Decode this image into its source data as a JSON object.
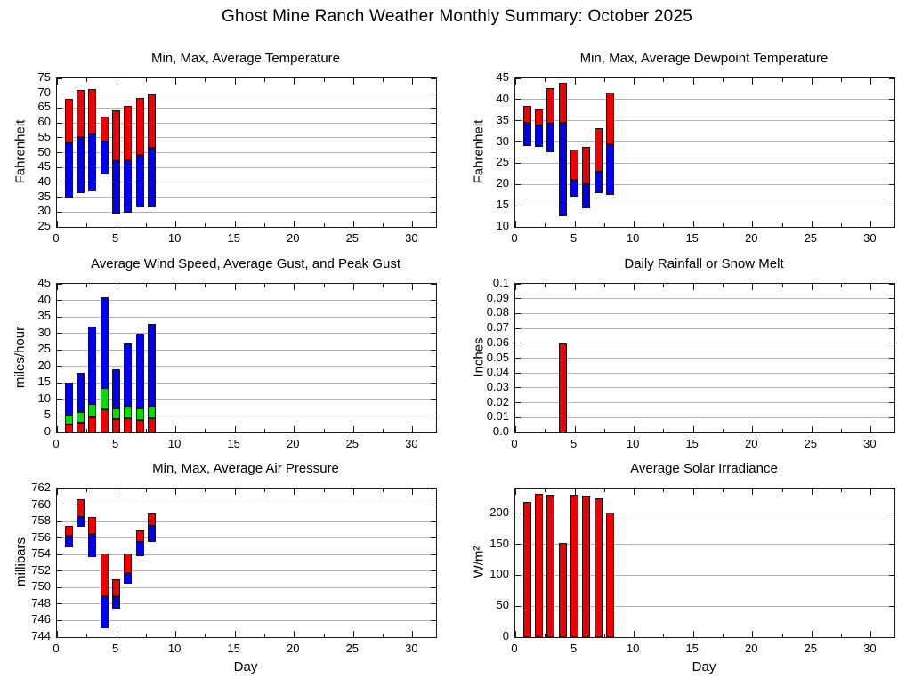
{
  "page": {
    "title": "Ghost Mine Ranch Weather Monthly Summary: October 2025",
    "background": "#ffffff",
    "grid_color": "#b4b4b4",
    "axis_color": "#1a1a1a"
  },
  "chart_data": [
    {
      "id": "temperature",
      "type": "range-bar",
      "title": "Min, Max, Average Temperature",
      "ylabel": "Fahrenheit",
      "xlabel": "",
      "ylim": [
        25,
        75
      ],
      "ytick_values": [
        25,
        30,
        35,
        40,
        45,
        50,
        55,
        60,
        65,
        70,
        75
      ],
      "ytick_labels": [
        "25",
        "30",
        "35",
        "40",
        "45",
        "50",
        "55",
        "60",
        "65",
        "70",
        "75"
      ],
      "xlim": [
        0,
        32
      ],
      "xtick_values": [
        0,
        5,
        10,
        15,
        20,
        25,
        30
      ],
      "xtick_labels": [
        "0",
        "5",
        "10",
        "15",
        "20",
        "25",
        "30"
      ],
      "x_minor_step": 2.5,
      "grid": "horizontal",
      "legend": "none",
      "segment_colors": [
        "#0000ee",
        "#ee0000"
      ],
      "x": [
        1,
        2,
        3,
        4,
        5,
        6,
        7,
        8
      ],
      "series": [
        {
          "name": "min",
          "values": [
            35.0,
            36.4,
            37.1,
            42.7,
            29.6,
            29.7,
            31.6,
            31.7
          ]
        },
        {
          "name": "average",
          "values": [
            53.0,
            55.1,
            56.1,
            53.8,
            47.1,
            47.4,
            49.2,
            51.5
          ]
        },
        {
          "name": "max",
          "values": [
            68.0,
            71.2,
            71.5,
            62.0,
            64.2,
            65.6,
            68.4,
            69.5
          ]
        }
      ]
    },
    {
      "id": "dewpoint",
      "type": "range-bar",
      "title": "Min, Max, Average Dewpoint Temperature",
      "ylabel": "Fahrenheit",
      "xlabel": "",
      "ylim": [
        10,
        45
      ],
      "ytick_values": [
        10,
        15,
        20,
        25,
        30,
        35,
        40,
        45
      ],
      "ytick_labels": [
        "10",
        "15",
        "20",
        "25",
        "30",
        "35",
        "40",
        "45"
      ],
      "xlim": [
        0,
        32
      ],
      "xtick_values": [
        0,
        5,
        10,
        15,
        20,
        25,
        30
      ],
      "xtick_labels": [
        "0",
        "5",
        "10",
        "15",
        "20",
        "25",
        "30"
      ],
      "x_minor_step": 2.5,
      "grid": "horizontal",
      "legend": "none",
      "segment_colors": [
        "#0000ee",
        "#ee0000"
      ],
      "x": [
        1,
        2,
        3,
        4,
        5,
        6,
        7,
        8
      ],
      "series": [
        {
          "name": "min",
          "values": [
            29.0,
            28.9,
            27.5,
            12.5,
            17.1,
            14.3,
            17.9,
            17.5
          ]
        },
        {
          "name": "average",
          "values": [
            34.6,
            33.9,
            34.4,
            34.6,
            21.1,
            20.1,
            22.9,
            29.5
          ]
        },
        {
          "name": "max",
          "values": [
            38.5,
            37.6,
            42.6,
            44.0,
            28.2,
            28.9,
            33.2,
            41.7
          ]
        }
      ]
    },
    {
      "id": "wind",
      "type": "stacked3-bar",
      "title": "Average Wind Speed, Average Gust, and Peak Gust",
      "ylabel": "miles/hour",
      "xlabel": "",
      "ylim": [
        0,
        45
      ],
      "ytick_values": [
        0,
        5,
        10,
        15,
        20,
        25,
        30,
        35,
        40,
        45
      ],
      "ytick_labels": [
        "0",
        "5",
        "10",
        "15",
        "20",
        "25",
        "30",
        "35",
        "40",
        "45"
      ],
      "xlim": [
        0,
        32
      ],
      "xtick_values": [
        0,
        5,
        10,
        15,
        20,
        25,
        30
      ],
      "xtick_labels": [
        "0",
        "5",
        "10",
        "15",
        "20",
        "25",
        "30"
      ],
      "x_minor_step": 2.5,
      "grid": "horizontal",
      "legend": "none",
      "segment_colors": [
        "#ee0000",
        "#00dd00",
        "#0000ee"
      ],
      "x": [
        1,
        2,
        3,
        4,
        5,
        6,
        7,
        8
      ],
      "series": [
        {
          "name": "avg-wind-speed",
          "values": [
            2.5,
            3.0,
            4.5,
            7.0,
            4.0,
            4.3,
            3.8,
            4.2
          ]
        },
        {
          "name": "avg-gust",
          "values": [
            5.0,
            6.3,
            8.7,
            13.5,
            7.3,
            8.2,
            7.2,
            8.1
          ]
        },
        {
          "name": "peak-gust",
          "values": [
            15,
            18,
            32,
            41,
            19,
            27,
            30,
            33
          ]
        }
      ]
    },
    {
      "id": "rainfall",
      "type": "bar",
      "title": "Daily Rainfall or Snow Melt",
      "ylabel": "Inches",
      "xlabel": "",
      "ylim": [
        0,
        0.1
      ],
      "ytick_values": [
        0,
        0.01,
        0.02,
        0.03,
        0.04,
        0.05,
        0.06,
        0.07,
        0.08,
        0.09,
        0.1
      ],
      "ytick_labels": [
        "0.0",
        "0.01",
        "0.02",
        "0.03",
        "0.04",
        "0.05",
        "0.06",
        "0.07",
        "0.08",
        "0.09",
        "0.1"
      ],
      "xlim": [
        0,
        32
      ],
      "xtick_values": [
        0,
        5,
        10,
        15,
        20,
        25,
        30
      ],
      "xtick_labels": [
        "0",
        "5",
        "10",
        "15",
        "20",
        "25",
        "30"
      ],
      "x_minor_step": 2.5,
      "grid": "horizontal",
      "legend": "none",
      "segment_colors": [
        "#ee0000"
      ],
      "x": [
        1,
        2,
        3,
        4,
        5,
        6,
        7,
        8
      ],
      "series": [
        {
          "name": "rainfall",
          "values": [
            0,
            0,
            0,
            0.06,
            0,
            0,
            0,
            0
          ]
        }
      ]
    },
    {
      "id": "pressure",
      "type": "range-bar",
      "title": "Min, Max, Average Air Pressure",
      "ylabel": "millibars",
      "xlabel": "Day",
      "ylim": [
        744,
        762
      ],
      "ytick_values": [
        744,
        746,
        748,
        750,
        752,
        754,
        756,
        758,
        760,
        762
      ],
      "ytick_labels": [
        "744",
        "746",
        "748",
        "750",
        "752",
        "754",
        "756",
        "758",
        "760",
        "762"
      ],
      "xlim": [
        0,
        32
      ],
      "xtick_values": [
        0,
        5,
        10,
        15,
        20,
        25,
        30
      ],
      "xtick_labels": [
        "0",
        "5",
        "10",
        "15",
        "20",
        "25",
        "30"
      ],
      "x_minor_step": 2.5,
      "grid": "horizontal",
      "legend": "none",
      "segment_colors": [
        "#0000ee",
        "#ee0000"
      ],
      "x": [
        1,
        2,
        3,
        4,
        5,
        6,
        7,
        8
      ],
      "series": [
        {
          "name": "min",
          "values": [
            754.9,
            757.4,
            753.7,
            745.1,
            747.4,
            750.5,
            753.8,
            755.5
          ]
        },
        {
          "name": "average",
          "values": [
            756.3,
            758.6,
            756.5,
            749.0,
            749.0,
            751.8,
            755.5,
            757.5
          ]
        },
        {
          "name": "max",
          "values": [
            757.5,
            760.7,
            758.5,
            754.1,
            751.0,
            754.1,
            756.9,
            759.0
          ]
        }
      ]
    },
    {
      "id": "solar",
      "type": "bar",
      "title": "Average Solar Irradiance",
      "ylabel": "W/m²",
      "xlabel": "Day",
      "ylim": [
        0,
        240
      ],
      "ytick_values": [
        0,
        50,
        100,
        150,
        200
      ],
      "ytick_labels": [
        "0",
        "50",
        "100",
        "150",
        "200"
      ],
      "xlim": [
        0,
        32
      ],
      "xtick_values": [
        0,
        5,
        10,
        15,
        20,
        25,
        30
      ],
      "xtick_labels": [
        "0",
        "5",
        "10",
        "15",
        "20",
        "25",
        "30"
      ],
      "x_minor_step": 2.5,
      "grid": "horizontal",
      "legend": "none",
      "segment_colors": [
        "#ee0000"
      ],
      "x": [
        1,
        2,
        3,
        4,
        5,
        6,
        7,
        8
      ],
      "series": [
        {
          "name": "solar-irradiance",
          "values": [
            218,
            232,
            230,
            153,
            230,
            228,
            224,
            201
          ]
        }
      ]
    }
  ]
}
